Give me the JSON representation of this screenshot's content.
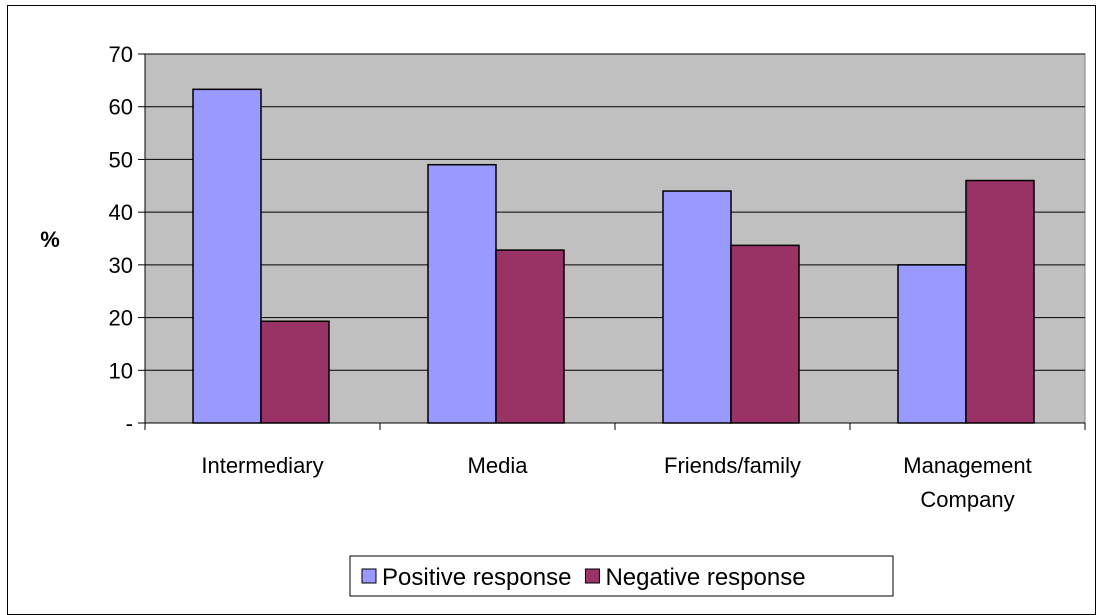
{
  "chart_data": {
    "type": "bar",
    "title": "",
    "xlabel": "",
    "ylabel": "%",
    "ylim": [
      0,
      70
    ],
    "yticks": [
      {
        "value": 0,
        "label": "-"
      },
      {
        "value": 10,
        "label": "10"
      },
      {
        "value": 20,
        "label": "20"
      },
      {
        "value": 30,
        "label": "30"
      },
      {
        "value": 40,
        "label": "40"
      },
      {
        "value": 50,
        "label": "50"
      },
      {
        "value": 60,
        "label": "60"
      },
      {
        "value": 70,
        "label": "70"
      }
    ],
    "categories": [
      [
        "Intermediary"
      ],
      [
        "Media"
      ],
      [
        "Friends/family"
      ],
      [
        "Management",
        "Company"
      ]
    ],
    "series": [
      {
        "name": "Positive response",
        "color": "#9999ff",
        "values": [
          63.3,
          49,
          44,
          30
        ]
      },
      {
        "name": "Negative response",
        "color": "#993366",
        "values": [
          19.3,
          32.8,
          33.7,
          46
        ]
      }
    ],
    "plot_background": "#c0c0c0",
    "grid": true,
    "legend_position": "bottom"
  }
}
